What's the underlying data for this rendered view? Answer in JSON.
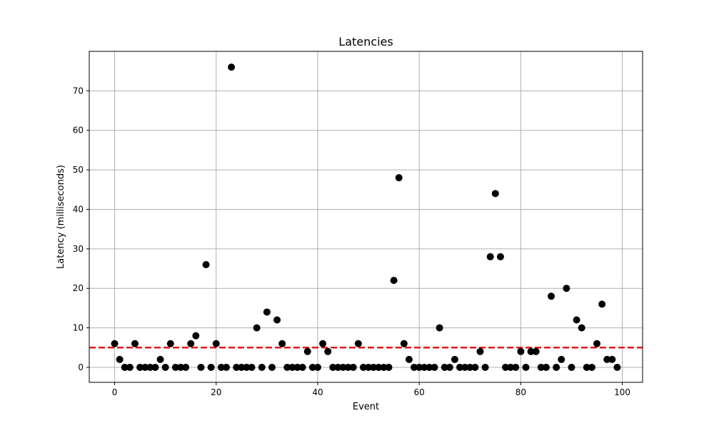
{
  "chart_data": {
    "type": "scatter",
    "title": "Latencies",
    "xlabel": "Event",
    "ylabel": "Latency (milliseconds)",
    "xlim": [
      -5,
      104
    ],
    "ylim": [
      -3.8,
      80
    ],
    "x_ticks": [
      0,
      20,
      40,
      60,
      80,
      100
    ],
    "y_ticks": [
      0,
      10,
      20,
      30,
      40,
      50,
      60,
      70
    ],
    "grid": true,
    "point_color": "#000000",
    "threshold": {
      "value": 5,
      "color": "#e31a1c",
      "style": "dashed"
    },
    "x": [
      0,
      1,
      2,
      3,
      4,
      5,
      6,
      7,
      8,
      9,
      10,
      11,
      12,
      13,
      14,
      15,
      16,
      17,
      18,
      19,
      20,
      21,
      22,
      23,
      24,
      25,
      26,
      27,
      28,
      29,
      30,
      31,
      32,
      33,
      34,
      35,
      36,
      37,
      38,
      39,
      40,
      41,
      42,
      43,
      44,
      45,
      46,
      47,
      48,
      49,
      50,
      51,
      52,
      53,
      54,
      55,
      56,
      57,
      58,
      59,
      60,
      61,
      62,
      63,
      64,
      65,
      66,
      67,
      68,
      69,
      70,
      71,
      72,
      73,
      74,
      75,
      76,
      77,
      78,
      79,
      80,
      81,
      82,
      83,
      84,
      85,
      86,
      87,
      88,
      89,
      90,
      91,
      92,
      93,
      94,
      95,
      96,
      97,
      98,
      99
    ],
    "y": [
      6,
      2,
      0,
      0,
      6,
      0,
      0,
      0,
      0,
      2,
      0,
      6,
      0,
      0,
      0,
      6,
      8,
      0,
      26,
      0,
      6,
      0,
      0,
      76,
      0,
      0,
      0,
      0,
      10,
      0,
      14,
      0,
      12,
      6,
      0,
      0,
      0,
      0,
      4,
      0,
      0,
      6,
      4,
      0,
      0,
      0,
      0,
      0,
      6,
      0,
      0,
      0,
      0,
      0,
      0,
      22,
      48,
      6,
      2,
      0,
      0,
      0,
      0,
      0,
      10,
      0,
      0,
      2,
      0,
      0,
      0,
      0,
      4,
      0,
      28,
      44,
      28,
      0,
      0,
      0,
      4,
      0,
      4,
      4,
      0,
      0,
      18,
      0,
      2,
      20,
      0,
      12,
      10,
      0,
      0,
      6,
      16,
      2,
      2,
      0
    ]
  }
}
